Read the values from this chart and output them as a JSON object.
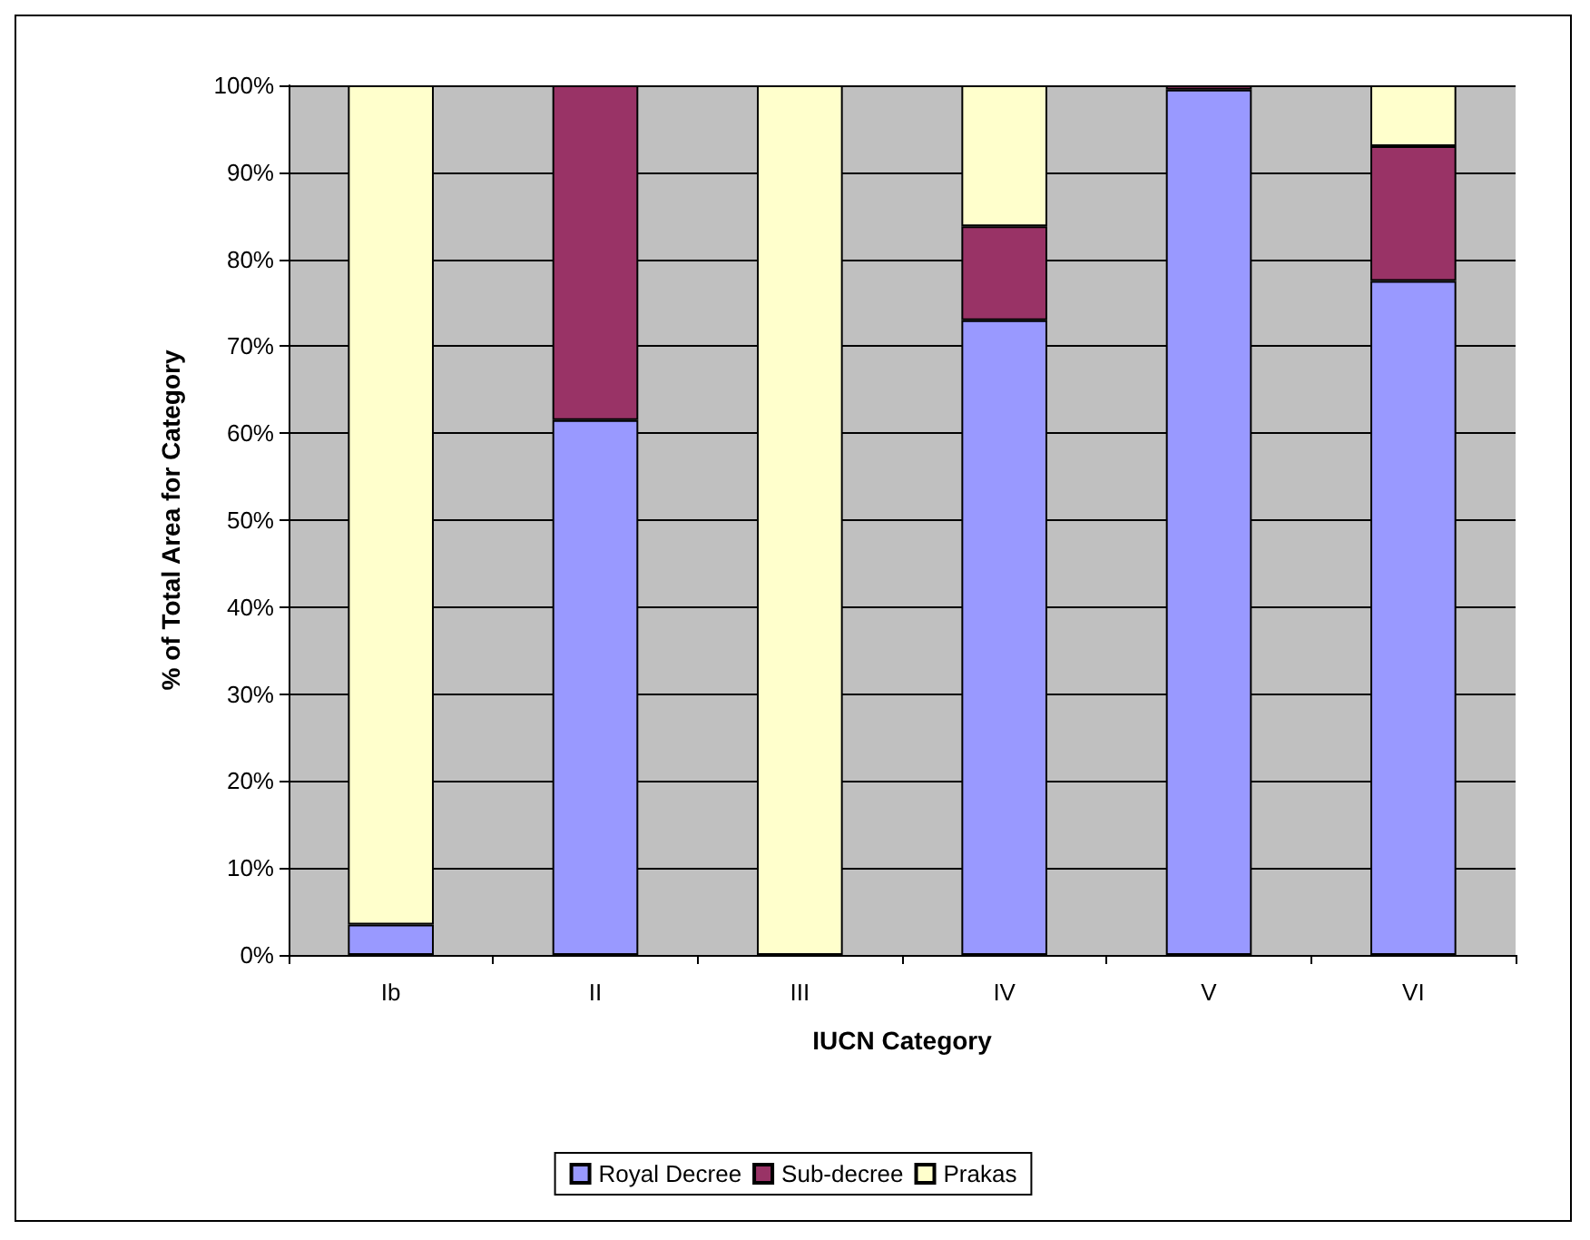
{
  "chart_data": {
    "type": "bar",
    "stacked": true,
    "xlabel": "IUCN Category",
    "ylabel": "% of Total Area for Category",
    "categories": [
      "Ib",
      "II",
      "III",
      "IV",
      "V",
      "VI"
    ],
    "series": [
      {
        "name": "Royal Decree",
        "color": "#9999ff",
        "values": [
          3.5,
          61.5,
          0,
          73,
          99.5,
          77.5
        ]
      },
      {
        "name": "Sub-decree",
        "color": "#993366",
        "values": [
          0,
          38.5,
          0,
          10.8,
          0.5,
          15.5
        ]
      },
      {
        "name": "Prakas",
        "color": "#ffffcc",
        "values": [
          96.5,
          0,
          100,
          16.2,
          0,
          7
        ]
      }
    ],
    "ylim": [
      0,
      100
    ],
    "yticks": [
      {
        "value": 0,
        "label": "0%"
      },
      {
        "value": 10,
        "label": "10%"
      },
      {
        "value": 20,
        "label": "20%"
      },
      {
        "value": 30,
        "label": "30%"
      },
      {
        "value": 40,
        "label": "40%"
      },
      {
        "value": 50,
        "label": "50%"
      },
      {
        "value": 60,
        "label": "60%"
      },
      {
        "value": 70,
        "label": "70%"
      },
      {
        "value": 80,
        "label": "80%"
      },
      {
        "value": 90,
        "label": "90%"
      },
      {
        "value": 100,
        "label": "100%"
      }
    ],
    "grid": "y",
    "legend": "bottom"
  }
}
